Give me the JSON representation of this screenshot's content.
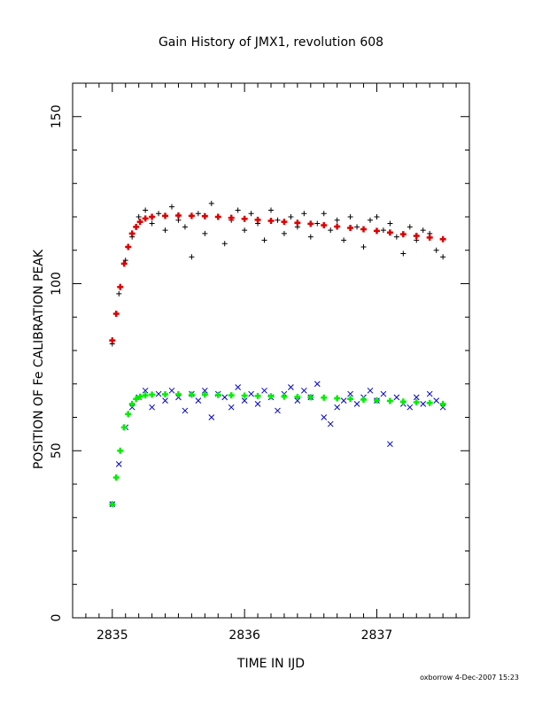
{
  "chart_data": {
    "type": "scatter",
    "title": "Gain History of JMX1, revolution 608",
    "xlabel": "TIME IN IJD",
    "ylabel": "POSITION OF Fe CALIBRATION PEAK",
    "xlim": [
      2834.7,
      2837.7
    ],
    "ylim": [
      0,
      160
    ],
    "xticks": [
      2835,
      2836,
      2837
    ],
    "yticks": [
      0,
      50,
      100,
      150
    ],
    "grid": false,
    "series": [
      {
        "marker": "plus",
        "color": "#000000",
        "x": [
          2835.0,
          2835.05,
          2835.1,
          2835.15,
          2835.2,
          2835.25,
          2835.3,
          2835.35,
          2835.4,
          2835.45,
          2835.5,
          2835.55,
          2835.6,
          2835.65,
          2835.7,
          2835.75,
          2835.8,
          2835.85,
          2835.9,
          2835.95,
          2836.0,
          2836.05,
          2836.1,
          2836.15,
          2836.2,
          2836.25,
          2836.3,
          2836.35,
          2836.4,
          2836.45,
          2836.5,
          2836.55,
          2836.6,
          2836.65,
          2836.7,
          2836.75,
          2836.8,
          2836.85,
          2836.9,
          2836.95,
          2837.0,
          2837.05,
          2837.1,
          2837.15,
          2837.2,
          2837.25,
          2837.3,
          2837.35,
          2837.4,
          2837.45,
          2837.5
        ],
        "y": [
          82,
          97,
          107,
          114,
          120,
          122,
          118,
          121,
          116,
          123,
          119,
          117,
          108,
          121,
          115,
          124,
          120,
          112,
          119,
          122,
          116,
          121,
          118,
          113,
          122,
          119,
          115,
          120,
          117,
          121,
          114,
          118,
          121,
          116,
          119,
          113,
          120,
          117,
          111,
          119,
          120,
          116,
          118,
          114,
          109,
          117,
          113,
          116,
          115,
          110,
          108
        ]
      },
      {
        "marker": "cross",
        "color": "#0000cc",
        "x": [
          2835.0,
          2835.05,
          2835.1,
          2835.15,
          2835.2,
          2835.25,
          2835.3,
          2835.35,
          2835.4,
          2835.45,
          2835.5,
          2835.55,
          2835.6,
          2835.65,
          2835.7,
          2835.75,
          2835.8,
          2835.85,
          2835.9,
          2835.95,
          2836.0,
          2836.05,
          2836.1,
          2836.15,
          2836.2,
          2836.25,
          2836.3,
          2836.35,
          2836.4,
          2836.45,
          2836.5,
          2836.55,
          2836.6,
          2836.65,
          2836.7,
          2836.75,
          2836.8,
          2836.85,
          2836.9,
          2836.95,
          2837.0,
          2837.05,
          2837.1,
          2837.15,
          2837.2,
          2837.25,
          2837.3,
          2837.35,
          2837.4,
          2837.45,
          2837.5
        ],
        "y": [
          34,
          46,
          57,
          63,
          66,
          68,
          63,
          67,
          65,
          68,
          66,
          62,
          67,
          65,
          68,
          60,
          67,
          66,
          63,
          69,
          65,
          67,
          64,
          68,
          66,
          62,
          67,
          69,
          65,
          68,
          66,
          70,
          60,
          58,
          63,
          65,
          67,
          64,
          66,
          68,
          65,
          67,
          52,
          66,
          64,
          63,
          66,
          64,
          67,
          65,
          63
        ]
      },
      {
        "marker": "plus",
        "color": "#dd0000",
        "x": [
          2835.0,
          2835.03,
          2835.06,
          2835.09,
          2835.12,
          2835.15,
          2835.18,
          2835.21,
          2835.25,
          2835.3,
          2835.4,
          2835.5,
          2835.6,
          2835.7,
          2835.8,
          2835.9,
          2836.0,
          2836.1,
          2836.2,
          2836.3,
          2836.4,
          2836.5,
          2836.6,
          2836.7,
          2836.8,
          2836.9,
          2837.0,
          2837.1,
          2837.2,
          2837.3,
          2837.4,
          2837.5
        ],
        "y": [
          83,
          91,
          99,
          106,
          111,
          115,
          117,
          118.5,
          119.5,
          120,
          120.3,
          120.4,
          120.3,
          120.2,
          120.0,
          119.7,
          119.4,
          119.1,
          118.8,
          118.5,
          118.2,
          117.9,
          117.5,
          117.1,
          116.7,
          116.3,
          115.8,
          115.3,
          114.8,
          114.3,
          113.8,
          113.3
        ]
      },
      {
        "marker": "plus",
        "color": "#00ee00",
        "x": [
          2835.0,
          2835.03,
          2835.06,
          2835.09,
          2835.12,
          2835.15,
          2835.18,
          2835.21,
          2835.25,
          2835.3,
          2835.4,
          2835.5,
          2835.6,
          2835.7,
          2835.8,
          2835.9,
          2836.0,
          2836.1,
          2836.2,
          2836.3,
          2836.4,
          2836.5,
          2836.6,
          2836.7,
          2836.8,
          2836.9,
          2837.0,
          2837.1,
          2837.2,
          2837.3,
          2837.4,
          2837.5
        ],
        "y": [
          34,
          42,
          50,
          57,
          61,
          64,
          65.5,
          66.2,
          66.6,
          66.8,
          66.9,
          66.9,
          66.8,
          66.8,
          66.7,
          66.6,
          66.5,
          66.4,
          66.3,
          66.2,
          66.1,
          66.0,
          65.9,
          65.7,
          65.5,
          65.3,
          65.1,
          64.9,
          64.7,
          64.5,
          64.3,
          64.0
        ]
      }
    ]
  },
  "footer": "oxborrow  4-Dec-2007 15:23"
}
